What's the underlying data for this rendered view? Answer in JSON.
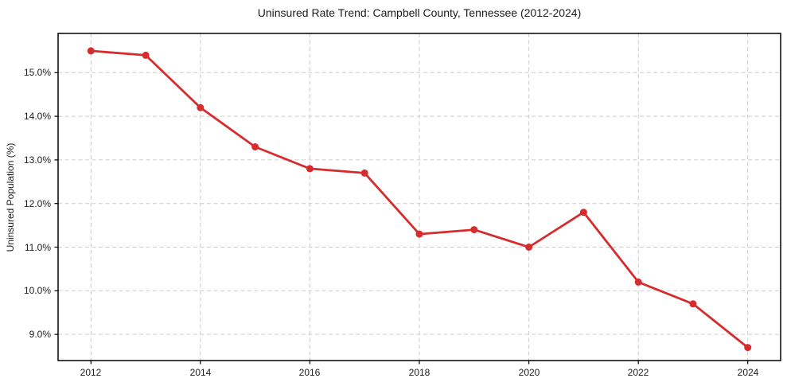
{
  "page": {
    "background": "#ffffff"
  },
  "chart_data": {
    "type": "line",
    "title": "Uninsured Rate Trend: Campbell County, Tennessee (2012-2024)",
    "xlabel": "",
    "ylabel": "Uninsured Population (%)",
    "x": [
      2012,
      2013,
      2014,
      2015,
      2016,
      2017,
      2018,
      2019,
      2020,
      2021,
      2022,
      2023,
      2024
    ],
    "series": [
      {
        "name": "Uninsured Rate",
        "values": [
          15.5,
          15.4,
          14.2,
          13.3,
          12.8,
          12.7,
          11.3,
          11.4,
          11.0,
          11.8,
          10.2,
          9.7,
          8.7
        ]
      }
    ],
    "x_ticks": [
      {
        "v": 2012,
        "label": "2012"
      },
      {
        "v": 2014,
        "label": "2014"
      },
      {
        "v": 2016,
        "label": "2016"
      },
      {
        "v": 2018,
        "label": "2018"
      },
      {
        "v": 2020,
        "label": "2020"
      },
      {
        "v": 2022,
        "label": "2022"
      },
      {
        "v": 2024,
        "label": "2024"
      }
    ],
    "y_ticks": [
      {
        "v": 9.0,
        "label": "9.0%"
      },
      {
        "v": 10.0,
        "label": "10.0%"
      },
      {
        "v": 11.0,
        "label": "11.0%"
      },
      {
        "v": 12.0,
        "label": "12.0%"
      },
      {
        "v": 13.0,
        "label": "13.0%"
      },
      {
        "v": 14.0,
        "label": "14.0%"
      },
      {
        "v": 15.0,
        "label": "15.0%"
      }
    ],
    "xlim": [
      2011.4,
      2024.6
    ],
    "ylim": [
      8.4,
      15.9
    ],
    "grid": true,
    "legend": "none",
    "colors": {
      "line": "#d62c2e",
      "marker": "#d62c2e",
      "grid": "#cccccc",
      "axis": "#000000",
      "text": "#1c1c1c"
    }
  }
}
